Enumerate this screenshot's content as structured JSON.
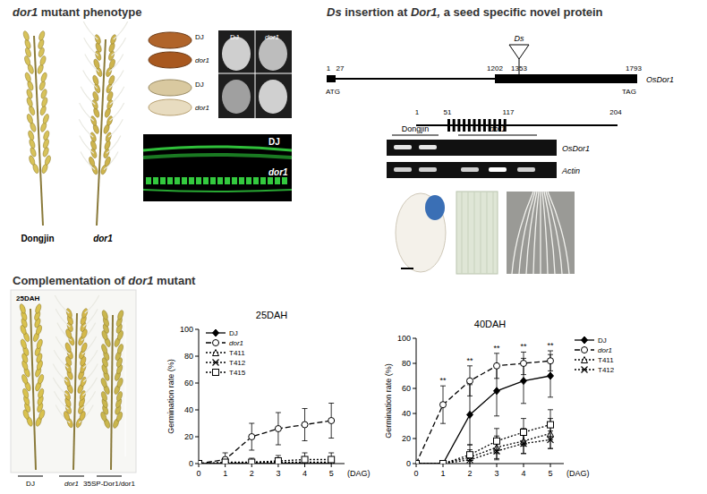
{
  "phenotype": {
    "title": "dor1 mutant phenotype",
    "panicle_labels": [
      "Dongjin",
      "dor1"
    ],
    "seed_labels": [
      "DJ",
      "dor1",
      "DJ",
      "dor1"
    ],
    "section_labels": [
      "DJ",
      "dor1"
    ],
    "fluorescence_labels": [
      "DJ",
      "dor1"
    ]
  },
  "insertion": {
    "title": "Ds insertion at Dor1, a seed specific novel protein",
    "gene": {
      "positions": [
        1,
        27,
        1202,
        1353,
        1793
      ],
      "insertion": "Ds",
      "start": "ATG",
      "stop": "TAG",
      "name": "OsDor1"
    },
    "protein": {
      "positions": [
        1,
        51,
        117,
        204
      ]
    },
    "gel": {
      "groups": [
        "Dongjin",
        "dor1"
      ],
      "rows": [
        "OsDor1",
        "Actin"
      ]
    }
  },
  "complementation": {
    "title": "Complementation of dor1 mutant",
    "photo_label": "25DAH",
    "photo_labels": [
      "DJ",
      "dor1",
      "35SP-Dor1/dor1"
    ]
  },
  "chart_data": [
    {
      "type": "line",
      "title": "25DAH",
      "x": [
        0,
        1,
        2,
        3,
        4,
        5
      ],
      "x_label": "(DAG)",
      "y_label": "Germination rate (%)",
      "xlim": [
        0,
        5.5
      ],
      "xticks": [
        0,
        1,
        2,
        3,
        4,
        5
      ],
      "ylim": [
        0,
        100
      ],
      "yticks": [
        0,
        20,
        40,
        60,
        80,
        100
      ],
      "grid": false,
      "legend": "upper left",
      "series": [
        {
          "name": "DJ",
          "color": "#000000",
          "marker": "diamond",
          "line_style": "solid",
          "values": [
            0,
            0,
            0,
            0,
            0,
            0
          ],
          "errors": [
            0,
            0,
            0,
            0,
            0,
            0
          ]
        },
        {
          "name": "dor1",
          "color": "#000000",
          "marker": "circle",
          "line_style": "dashed",
          "values": [
            0,
            3,
            20,
            26,
            29,
            32
          ],
          "errors": [
            0,
            5,
            10,
            12,
            12,
            13
          ]
        },
        {
          "name": "T411",
          "color": "#000000",
          "marker": "triangle",
          "line_style": "dotted",
          "values": [
            0,
            0,
            1,
            1,
            1,
            1
          ],
          "errors": [
            0,
            0,
            1,
            2,
            2,
            2
          ]
        },
        {
          "name": "T412",
          "color": "#000000",
          "marker": "x",
          "line_style": "dotted",
          "values": [
            0,
            0,
            0,
            0,
            0,
            0
          ],
          "errors": [
            0,
            0,
            0,
            0,
            0,
            1
          ]
        },
        {
          "name": "T415",
          "color": "#000000",
          "marker": "square",
          "line_style": "dotted",
          "values": [
            0,
            1,
            1,
            2,
            3,
            3
          ],
          "errors": [
            0,
            2,
            3,
            4,
            5,
            5
          ]
        }
      ]
    },
    {
      "type": "line",
      "title": "40DAH",
      "x": [
        0,
        1,
        2,
        3,
        4,
        5
      ],
      "x_label": "(DAG)",
      "y_label": "Germination rate (%)",
      "xlim": [
        0,
        5.5
      ],
      "xticks": [
        0,
        1,
        2,
        3,
        4,
        5
      ],
      "ylim": [
        0,
        100
      ],
      "yticks": [
        0,
        20,
        40,
        60,
        80,
        100
      ],
      "grid": false,
      "legend": "upper right",
      "annotations": [
        {
          "x": 1,
          "text": "**"
        },
        {
          "x": 2,
          "text": "**"
        },
        {
          "x": 3,
          "text": "**"
        },
        {
          "x": 4,
          "text": "**"
        },
        {
          "x": 5,
          "text": "**"
        }
      ],
      "series": [
        {
          "name": "DJ",
          "color": "#000000",
          "marker": "diamond",
          "line_style": "solid",
          "values": [
            0,
            0,
            39,
            58,
            66,
            70
          ],
          "errors": [
            0,
            0,
            24,
            20,
            18,
            17
          ]
        },
        {
          "name": "dor1",
          "color": "#000000",
          "marker": "circle",
          "line_style": "dashed",
          "values": [
            0,
            47,
            66,
            78,
            80,
            82
          ],
          "errors": [
            0,
            15,
            12,
            10,
            9,
            8
          ]
        },
        {
          "name": "T411",
          "color": "#000000",
          "marker": "triangle",
          "line_style": "dotted",
          "values": [
            0,
            0,
            5,
            13,
            18,
            24
          ],
          "errors": [
            0,
            0,
            6,
            9,
            10,
            12
          ]
        },
        {
          "name": "T412",
          "color": "#000000",
          "marker": "x",
          "line_style": "dotted",
          "values": [
            0,
            0,
            3,
            10,
            16,
            19
          ],
          "errors": [
            0,
            0,
            4,
            7,
            8,
            7
          ]
        },
        {
          "name": null,
          "color": "#000000",
          "marker": "square",
          "line_style": "dotted",
          "values": [
            0,
            0,
            7,
            18,
            25,
            31
          ],
          "errors": [
            0,
            0,
            8,
            10,
            11,
            12
          ]
        }
      ]
    }
  ]
}
